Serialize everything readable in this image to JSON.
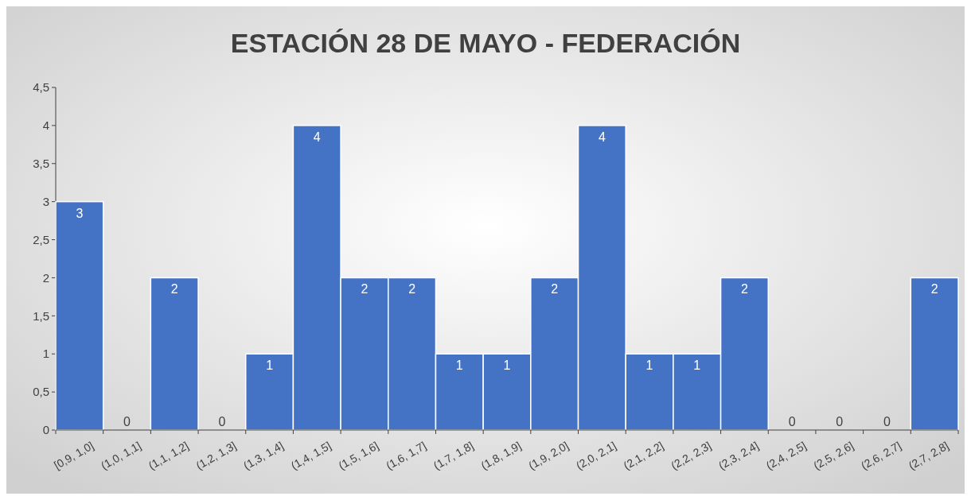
{
  "chart_data": {
    "type": "bar",
    "title": "ESTACIÓN 28 DE MAYO - FEDERACIÓN",
    "categories": [
      "[0,9, 1,0]",
      "(1,0, 1,1]",
      "(1,1, 1,2]",
      "(1,2, 1,3]",
      "(1,3, 1,4]",
      "(1,4, 1,5]",
      "(1,5, 1,6]",
      "(1,6, 1,7]",
      "(1,7, 1,8]",
      "(1,8, 1,9]",
      "(1,9, 2,0]",
      "(2,0, 2,1]",
      "(2,1, 2,2]",
      "(2,2, 2,3]",
      "(2,3, 2,4]",
      "(2,4, 2,5]",
      "(2,5, 2,6]",
      "(2,6, 2,7]",
      "(2,7, 2,8]"
    ],
    "values": [
      3,
      0,
      2,
      0,
      1,
      4,
      2,
      2,
      1,
      1,
      2,
      4,
      1,
      1,
      2,
      0,
      0,
      0,
      2
    ],
    "color": "#4472c4",
    "ylim": [
      0,
      4.5
    ],
    "yticks": [
      0,
      {
        "value": 0.5,
        "label": "0,5"
      },
      1,
      {
        "value": 1.5,
        "label": "1,5"
      },
      2,
      {
        "value": 2.5,
        "label": "2,5"
      },
      3,
      {
        "value": 3.5,
        "label": "3,5"
      },
      4,
      {
        "value": 4.5,
        "label": "4,5"
      }
    ],
    "data_labels": true,
    "grid": false
  }
}
